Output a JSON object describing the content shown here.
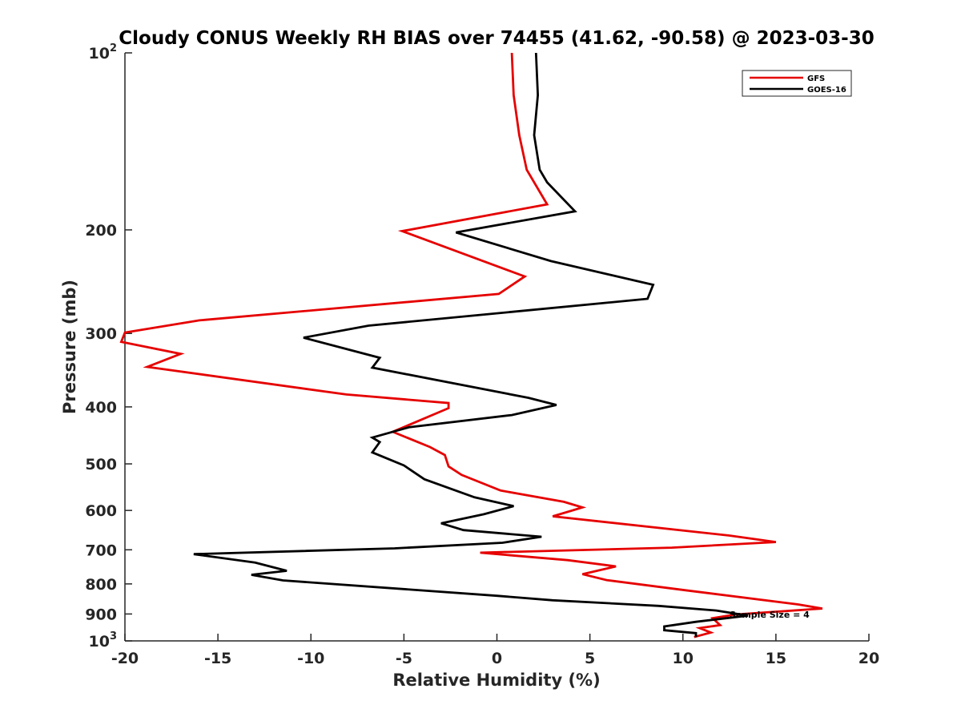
{
  "chart_data": {
    "type": "line",
    "title": "Cloudy CONUS Weekly RH BIAS over 74455 (41.62, -90.58) @ 2023-03-30",
    "xlabel": "Relative Humidity (%)",
    "ylabel": "Pressure (mb)",
    "xlim": [
      -20,
      20
    ],
    "ylim": [
      100,
      1000
    ],
    "y_scale": "log",
    "y_reversed": true,
    "grid": false,
    "legend_position": "top-right",
    "x_ticks": [
      "-20",
      "-15",
      "-10",
      "-5",
      "0",
      "5",
      "10",
      "15",
      "20"
    ],
    "x_tick_values": [
      -20,
      -15,
      -10,
      -5,
      0,
      5,
      10,
      15,
      20
    ],
    "y_ticks": [
      {
        "value": 100,
        "base": "10",
        "exp": "2"
      },
      {
        "value": 200,
        "label": "200"
      },
      {
        "value": 300,
        "label": "300"
      },
      {
        "value": 400,
        "label": "400"
      },
      {
        "value": 500,
        "label": "500"
      },
      {
        "value": 600,
        "label": "600"
      },
      {
        "value": 700,
        "label": "700"
      },
      {
        "value": 800,
        "label": "800"
      },
      {
        "value": 900,
        "label": "900"
      },
      {
        "value": 1000,
        "base": "10",
        "exp": "3"
      }
    ],
    "annotation": "Sample Size = 4",
    "series": [
      {
        "name": "GFS",
        "color": "#e60000",
        "points": [
          [
            0.8,
            100
          ],
          [
            0.9,
            118
          ],
          [
            1.2,
            138
          ],
          [
            1.6,
            158
          ],
          [
            2.7,
            181
          ],
          [
            -5.1,
            201
          ],
          [
            1.5,
            240
          ],
          [
            0.1,
            257
          ],
          [
            -16.0,
            285
          ],
          [
            -20.0,
            299
          ],
          [
            -20.2,
            310
          ],
          [
            -17.0,
            325
          ],
          [
            -18.8,
            342
          ],
          [
            -8.1,
            381
          ],
          [
            -2.6,
            394
          ],
          [
            -2.6,
            402
          ],
          [
            -5.6,
            441
          ],
          [
            -3.6,
            468
          ],
          [
            -2.8,
            483
          ],
          [
            -2.6,
            505
          ],
          [
            -1.9,
            522
          ],
          [
            0.2,
            555
          ],
          [
            3.6,
            580
          ],
          [
            4.6,
            593
          ],
          [
            3.0,
            614
          ],
          [
            12.5,
            662
          ],
          [
            15.0,
            679
          ],
          [
            9.4,
            694
          ],
          [
            -0.9,
            708
          ],
          [
            3.8,
            729
          ],
          [
            6.4,
            747
          ],
          [
            4.6,
            770
          ],
          [
            5.9,
            788
          ],
          [
            10.1,
            820
          ],
          [
            16.2,
            867
          ],
          [
            17.5,
            881
          ],
          [
            12.8,
            902
          ],
          [
            11.6,
            915
          ],
          [
            12.0,
            940
          ],
          [
            10.9,
            951
          ],
          [
            11.5,
            968
          ],
          [
            10.6,
            985
          ]
        ]
      },
      {
        "name": "GOES-16",
        "color": "#000000",
        "points": [
          [
            2.1,
            100
          ],
          [
            2.2,
            118
          ],
          [
            2.0,
            138
          ],
          [
            2.3,
            158
          ],
          [
            2.7,
            166
          ],
          [
            4.2,
            186
          ],
          [
            -2.2,
            202
          ],
          [
            2.9,
            226
          ],
          [
            8.4,
            248
          ],
          [
            8.1,
            262
          ],
          [
            -6.9,
            291
          ],
          [
            -10.4,
            305
          ],
          [
            -6.3,
            330
          ],
          [
            -6.7,
            343
          ],
          [
            1.7,
            386
          ],
          [
            3.2,
            397
          ],
          [
            0.8,
            413
          ],
          [
            -4.7,
            433
          ],
          [
            -6.7,
            451
          ],
          [
            -6.3,
            459
          ],
          [
            -6.7,
            478
          ],
          [
            -5.0,
            503
          ],
          [
            -3.9,
            531
          ],
          [
            -1.2,
            570
          ],
          [
            0.9,
            590
          ],
          [
            -0.7,
            609
          ],
          [
            -3.0,
            631
          ],
          [
            -1.8,
            648
          ],
          [
            2.4,
            665
          ],
          [
            0.3,
            681
          ],
          [
            -5.5,
            696
          ],
          [
            -16.3,
            712
          ],
          [
            -13.0,
            736
          ],
          [
            -11.3,
            760
          ],
          [
            -13.2,
            772
          ],
          [
            -11.5,
            789
          ],
          [
            0.0,
            838
          ],
          [
            3.0,
            853
          ],
          [
            8.7,
            872
          ],
          [
            11.8,
            888
          ],
          [
            13.5,
            906
          ],
          [
            10.7,
            928
          ],
          [
            9.0,
            945
          ],
          [
            9.0,
            959
          ],
          [
            10.7,
            970
          ],
          [
            10.7,
            985
          ]
        ]
      }
    ]
  }
}
